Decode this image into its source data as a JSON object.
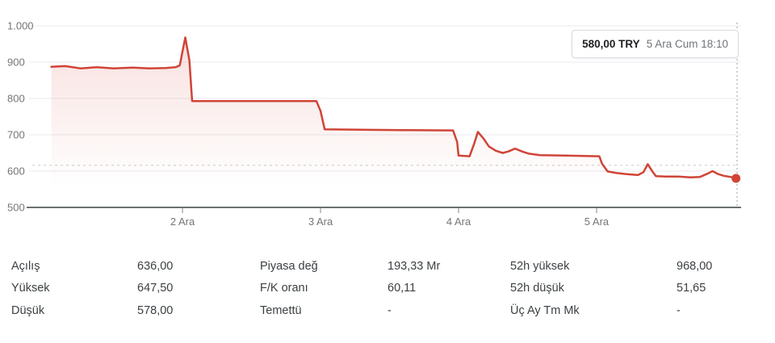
{
  "tooltip": {
    "price": "580,00 TRY",
    "time": "5 Ara Cum 18:10"
  },
  "chart_data": {
    "type": "area",
    "currency": "TRY",
    "xlim": [
      0.9,
      6.047
    ],
    "ylim": [
      500,
      1000
    ],
    "grid": true,
    "y_ticks": [
      {
        "value": 500,
        "label": "500"
      },
      {
        "value": 600,
        "label": "600"
      },
      {
        "value": 700,
        "label": "700"
      },
      {
        "value": 800,
        "label": "800"
      },
      {
        "value": 900,
        "label": "900"
      },
      {
        "value": 1000,
        "label": "1.000"
      }
    ],
    "x_ticks": [
      {
        "pos": 2,
        "label": "2 Ara"
      },
      {
        "pos": 3,
        "label": "3 Ara"
      },
      {
        "pos": 4,
        "label": "4 Ara"
      },
      {
        "pos": 5,
        "label": "5 Ara"
      }
    ],
    "prev_close_value": 616,
    "cursor_pos": 6.018,
    "last_point": {
      "pos": 6.01,
      "value": 580
    },
    "series": [
      {
        "name": "price",
        "points": [
          [
            1.05,
            887
          ],
          [
            1.15,
            889
          ],
          [
            1.26,
            883
          ],
          [
            1.38,
            886
          ],
          [
            1.5,
            883
          ],
          [
            1.64,
            885
          ],
          [
            1.76,
            883
          ],
          [
            1.88,
            884
          ],
          [
            1.95,
            886
          ],
          [
            1.98,
            891
          ],
          [
            2.02,
            968
          ],
          [
            2.05,
            905
          ],
          [
            2.07,
            793
          ],
          [
            2.5,
            793
          ],
          [
            2.97,
            793
          ],
          [
            3.0,
            766
          ],
          [
            3.03,
            715
          ],
          [
            3.3,
            714
          ],
          [
            3.6,
            713
          ],
          [
            3.96,
            712
          ],
          [
            3.99,
            680
          ],
          [
            4.0,
            643
          ],
          [
            4.08,
            641
          ],
          [
            4.11,
            672
          ],
          [
            4.14,
            708
          ],
          [
            4.18,
            690
          ],
          [
            4.22,
            668
          ],
          [
            4.27,
            656
          ],
          [
            4.32,
            650
          ],
          [
            4.36,
            654
          ],
          [
            4.41,
            662
          ],
          [
            4.46,
            654
          ],
          [
            4.51,
            648
          ],
          [
            4.59,
            644
          ],
          [
            4.77,
            643
          ],
          [
            5.02,
            641
          ],
          [
            5.04,
            620
          ],
          [
            5.08,
            599
          ],
          [
            5.14,
            595
          ],
          [
            5.21,
            592
          ],
          [
            5.3,
            589
          ],
          [
            5.34,
            597
          ],
          [
            5.37,
            619
          ],
          [
            5.41,
            596
          ],
          [
            5.43,
            586
          ],
          [
            5.5,
            585
          ],
          [
            5.59,
            585
          ],
          [
            5.68,
            583
          ],
          [
            5.75,
            584
          ],
          [
            5.81,
            594
          ],
          [
            5.84,
            600
          ],
          [
            5.88,
            592
          ],
          [
            5.92,
            587
          ],
          [
            5.97,
            584
          ],
          [
            6.01,
            580
          ]
        ]
      }
    ],
    "colors": {
      "line": "#d04437",
      "dot": "#d04437",
      "fill_top": "rgba(208,68,55,0.16)",
      "grid": "#e9eaec",
      "axis": "#3c4043",
      "tick_mark": "#80868b",
      "tick_label": "#757575",
      "prev_close": "#d9dbdd",
      "cursor": "#9aa0a6"
    }
  },
  "stats": {
    "columns": [
      {
        "rows": [
          {
            "label": "Açılış",
            "value": "636,00"
          },
          {
            "label": "Yüksek",
            "value": "647,50"
          },
          {
            "label": "Düşük",
            "value": "578,00"
          }
        ]
      },
      {
        "rows": [
          {
            "label": "Piyasa değ",
            "value": "193,33 Mr"
          },
          {
            "label": "F/K oranı",
            "value": "60,11"
          },
          {
            "label": "Temettü",
            "value": "-"
          }
        ]
      },
      {
        "rows": [
          {
            "label": "52h yüksek",
            "value": "968,00"
          },
          {
            "label": "52h düşük",
            "value": "51,65"
          },
          {
            "label": "Üç Ay Tm Mk",
            "value": "-"
          }
        ]
      }
    ]
  }
}
